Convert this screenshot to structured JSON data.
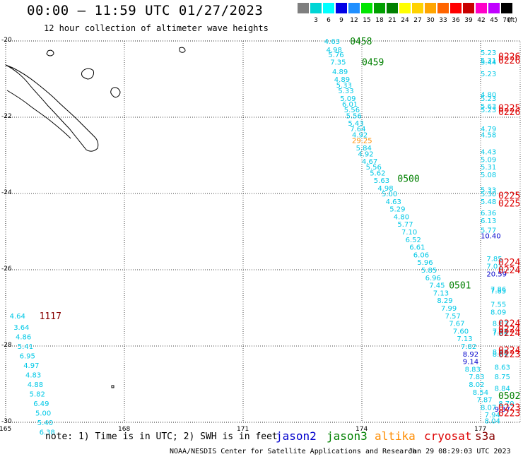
{
  "title": "00:00 – 11:59 UTC 01/27/2023",
  "subtitle": "12 hour collection of altimeter wave heights",
  "legend": {
    "unit": "(ft)",
    "steps": [
      {
        "label": "",
        "color": "#7f7f7f"
      },
      {
        "label": "3",
        "color": "#00d5d5"
      },
      {
        "label": "6",
        "color": "#00ffff"
      },
      {
        "label": "9",
        "color": "#0000e6"
      },
      {
        "label": "12",
        "color": "#1f8fff"
      },
      {
        "label": "15",
        "color": "#00e600"
      },
      {
        "label": "18",
        "color": "#00a000"
      },
      {
        "label": "21",
        "color": "#008000"
      },
      {
        "label": "24",
        "color": "#ffff00"
      },
      {
        "label": "27",
        "color": "#ffd200"
      },
      {
        "label": "30",
        "color": "#ffa500"
      },
      {
        "label": "33",
        "color": "#ff6400"
      },
      {
        "label": "36",
        "color": "#ff0000"
      },
      {
        "label": "39",
        "color": "#c80000"
      },
      {
        "label": "42",
        "color": "#ff00c8"
      },
      {
        "label": "45",
        "color": "#c000ff"
      },
      {
        "label": "70",
        "color": "#000000"
      }
    ]
  },
  "map": {
    "lon_range": [
      165,
      178
    ],
    "lat_range": [
      -30,
      -20
    ],
    "lon_ticks": [
      "165",
      "168",
      "171",
      "174",
      "177"
    ],
    "lat_ticks": [
      "-20",
      "-22",
      "-24",
      "-26",
      "-28",
      "-30"
    ]
  },
  "footer": {
    "note": "note: 1) Time is in UTC; 2) SWH is in feet",
    "satellites": [
      {
        "name": "jason2",
        "color": "#0000cc"
      },
      {
        "name": "jason3",
        "color": "#008000"
      },
      {
        "name": "altika",
        "color": "#ff8c00"
      },
      {
        "name": "cryosat",
        "color": "#dd0000"
      },
      {
        "name": "s3a",
        "color": "#880000"
      }
    ],
    "credit": "NOAA/NESDIS Center for Satellite Applications and Research",
    "stamp": "Jan 29 08:29:03 UTC 2023"
  },
  "colors": {
    "swh_low": "#00c8e6",
    "swh_mid": "#0000cc",
    "time_jason3": "#008000",
    "time_cryosat": "#dd0000",
    "time_s3a": "#880000",
    "swh_high": "#ff8c00"
  },
  "tracks": {
    "jason3_a": [
      {
        "lon": 173.05,
        "lat": -20.0,
        "swh": "4.63"
      },
      {
        "lon": 173.1,
        "lat": -20.22,
        "swh": "4.98"
      },
      {
        "lon": 173.15,
        "lat": -20.35,
        "swh": "5.76"
      },
      {
        "lon": 173.2,
        "lat": -20.55,
        "swh": "7.35"
      },
      {
        "lon": 173.25,
        "lat": -20.8,
        "swh": "4.89"
      },
      {
        "lon": 173.3,
        "lat": -21.0,
        "swh": "4.89"
      },
      {
        "lon": 173.35,
        "lat": -21.15,
        "swh": "5.33"
      },
      {
        "lon": 173.4,
        "lat": -21.3,
        "swh": "5.33"
      },
      {
        "lon": 173.45,
        "lat": -21.5,
        "swh": "5.09"
      },
      {
        "lon": 173.5,
        "lat": -21.65,
        "swh": "6.01"
      },
      {
        "lon": 173.55,
        "lat": -21.8,
        "swh": "5.56"
      },
      {
        "lon": 173.6,
        "lat": -21.95,
        "swh": "5.56"
      },
      {
        "lon": 173.65,
        "lat": -22.15,
        "swh": "5.43"
      },
      {
        "lon": 173.7,
        "lat": -22.3,
        "swh": "7.64"
      },
      {
        "lon": 173.75,
        "lat": -22.45,
        "swh": "4.92"
      },
      {
        "lon": 173.75,
        "lat": -22.6,
        "swh": "29.25"
      },
      {
        "lon": 173.85,
        "lat": -22.8,
        "swh": "5.84"
      },
      {
        "lon": 173.9,
        "lat": -22.95,
        "swh": "4.92"
      },
      {
        "lon": 174.0,
        "lat": -23.15,
        "swh": "4.67"
      },
      {
        "lon": 174.1,
        "lat": -23.3,
        "swh": "5.56"
      },
      {
        "lon": 174.2,
        "lat": -23.45,
        "swh": "5.62"
      },
      {
        "lon": 174.3,
        "lat": -23.65,
        "swh": "5.63"
      },
      {
        "lon": 174.4,
        "lat": -23.85,
        "swh": "4.98"
      },
      {
        "lon": 174.5,
        "lat": -24.0,
        "swh": "5.00"
      },
      {
        "lon": 174.6,
        "lat": -24.2,
        "swh": "4.63"
      },
      {
        "lon": 174.7,
        "lat": -24.4,
        "swh": "5.29"
      },
      {
        "lon": 174.8,
        "lat": -24.6,
        "swh": "4.80"
      },
      {
        "lon": 174.9,
        "lat": -24.8,
        "swh": "5.77"
      },
      {
        "lon": 175.0,
        "lat": -25.0,
        "swh": "7.10"
      },
      {
        "lon": 175.1,
        "lat": -25.2,
        "swh": "6.52"
      },
      {
        "lon": 175.2,
        "lat": -25.4,
        "swh": "6.61"
      },
      {
        "lon": 175.3,
        "lat": -25.6,
        "swh": "6.06"
      },
      {
        "lon": 175.4,
        "lat": -25.8,
        "swh": "5.96"
      },
      {
        "lon": 175.5,
        "lat": -26.0,
        "swh": "5.85"
      },
      {
        "lon": 175.6,
        "lat": -26.2,
        "swh": "6.96"
      },
      {
        "lon": 175.7,
        "lat": -26.4,
        "swh": "7.45"
      },
      {
        "lon": 175.8,
        "lat": -26.6,
        "swh": "7.13"
      },
      {
        "lon": 175.9,
        "lat": -26.8,
        "swh": "8.29"
      },
      {
        "lon": 176.0,
        "lat": -27.0,
        "swh": "7.99"
      },
      {
        "lon": 176.1,
        "lat": -27.2,
        "swh": "7.57"
      },
      {
        "lon": 176.2,
        "lat": -27.4,
        "swh": "7.67"
      },
      {
        "lon": 176.3,
        "lat": -27.6,
        "swh": "7.60"
      },
      {
        "lon": 176.4,
        "lat": -27.8,
        "swh": "7.13"
      },
      {
        "lon": 176.5,
        "lat": -28.0,
        "swh": "7.82"
      },
      {
        "lon": 176.55,
        "lat": -28.2,
        "swh": "8.92"
      },
      {
        "lon": 176.55,
        "lat": -28.4,
        "swh": "9.14"
      },
      {
        "lon": 176.6,
        "lat": -28.6,
        "swh": "8.83"
      },
      {
        "lon": 176.7,
        "lat": -28.8,
        "swh": "7.83"
      },
      {
        "lon": 176.7,
        "lat": -29.0,
        "swh": "8.02"
      },
      {
        "lon": 176.8,
        "lat": -29.2,
        "swh": "8.54"
      },
      {
        "lon": 176.9,
        "lat": -29.4,
        "swh": "7.87"
      },
      {
        "lon": 177.0,
        "lat": -29.6,
        "swh": "8.07"
      },
      {
        "lon": 177.1,
        "lat": -29.8,
        "swh": "7.94"
      },
      {
        "lon": 177.1,
        "lat": -29.95,
        "swh": "8.04"
      }
    ],
    "jason3_b": [
      {
        "lon": 177.0,
        "lat": -20.3,
        "swh": "5.23"
      },
      {
        "lon": 177.0,
        "lat": -20.5,
        "swh": "5.31"
      },
      {
        "lon": 177.0,
        "lat": -20.55,
        "swh": "5.44"
      },
      {
        "lon": 177.0,
        "lat": -20.85,
        "swh": "5.23"
      },
      {
        "lon": 177.0,
        "lat": -21.4,
        "swh": "4.80"
      },
      {
        "lon": 177.0,
        "lat": -21.5,
        "swh": "5.23"
      },
      {
        "lon": 177.0,
        "lat": -21.7,
        "swh": "5.63"
      },
      {
        "lon": 177.0,
        "lat": -21.8,
        "swh": "5.23"
      },
      {
        "lon": 177.0,
        "lat": -22.3,
        "swh": "4.79"
      },
      {
        "lon": 177.0,
        "lat": -22.45,
        "swh": "4.58"
      },
      {
        "lon": 177.0,
        "lat": -22.9,
        "swh": "4.43"
      },
      {
        "lon": 177.0,
        "lat": -23.1,
        "swh": "5.09"
      },
      {
        "lon": 177.0,
        "lat": -23.3,
        "swh": "5.31"
      },
      {
        "lon": 177.0,
        "lat": -23.5,
        "swh": "5.08"
      },
      {
        "lon": 177.0,
        "lat": -23.9,
        "swh": "5.33"
      },
      {
        "lon": 177.0,
        "lat": -24.0,
        "swh": "5.30"
      },
      {
        "lon": 177.0,
        "lat": -24.2,
        "swh": "5.48"
      },
      {
        "lon": 177.0,
        "lat": -24.5,
        "swh": "6.36"
      },
      {
        "lon": 177.0,
        "lat": -24.7,
        "swh": "6.13"
      },
      {
        "lon": 177.0,
        "lat": -24.95,
        "swh": "5.77"
      },
      {
        "lon": 177.0,
        "lat": -25.1,
        "swh": "10.40"
      },
      {
        "lon": 177.15,
        "lat": -25.7,
        "swh": "7.85"
      },
      {
        "lon": 177.15,
        "lat": -25.9,
        "swh": "7.01"
      },
      {
        "lon": 177.15,
        "lat": -26.1,
        "swh": "20.59"
      },
      {
        "lon": 177.25,
        "lat": -26.5,
        "swh": "7.86"
      },
      {
        "lon": 177.25,
        "lat": -26.55,
        "swh": "7.85"
      },
      {
        "lon": 177.25,
        "lat": -26.9,
        "swh": "7.55"
      },
      {
        "lon": 177.25,
        "lat": -27.1,
        "swh": "8.09"
      },
      {
        "lon": 177.3,
        "lat": -27.4,
        "swh": "8.03"
      },
      {
        "lon": 177.3,
        "lat": -27.6,
        "swh": "7.92"
      },
      {
        "lon": 177.3,
        "lat": -27.65,
        "swh": "7.85"
      },
      {
        "lon": 177.3,
        "lat": -28.15,
        "swh": "8.85"
      },
      {
        "lon": 177.3,
        "lat": -28.2,
        "swh": "8.69"
      },
      {
        "lon": 177.35,
        "lat": -28.55,
        "swh": "8.63"
      },
      {
        "lon": 177.35,
        "lat": -28.8,
        "swh": "8.75"
      },
      {
        "lon": 177.35,
        "lat": -29.1,
        "swh": "8.84"
      },
      {
        "lon": 177.45,
        "lat": -29.5,
        "swh": "8.70"
      },
      {
        "lon": 177.35,
        "lat": -29.65,
        "swh": "9.37"
      }
    ],
    "jason3_c": [
      {
        "lon": 165.1,
        "lat": -27.2,
        "swh": "4.64"
      },
      {
        "lon": 165.2,
        "lat": -27.5,
        "swh": "3.64"
      },
      {
        "lon": 165.25,
        "lat": -27.75,
        "swh": "4.86"
      },
      {
        "lon": 165.3,
        "lat": -28.0,
        "swh": "5.41"
      },
      {
        "lon": 165.35,
        "lat": -28.25,
        "swh": "6.95"
      },
      {
        "lon": 165.45,
        "lat": -28.5,
        "swh": "4.97"
      },
      {
        "lon": 165.5,
        "lat": -28.75,
        "swh": "4.83"
      },
      {
        "lon": 165.55,
        "lat": -29.0,
        "swh": "4.88"
      },
      {
        "lon": 165.6,
        "lat": -29.25,
        "swh": "5.82"
      },
      {
        "lon": 165.7,
        "lat": -29.5,
        "swh": "6.49"
      },
      {
        "lon": 165.75,
        "lat": -29.75,
        "swh": "5.00"
      },
      {
        "lon": 165.8,
        "lat": -30.0,
        "swh": "5.40"
      },
      {
        "lon": 165.85,
        "lat": -30.25,
        "swh": "6.38"
      }
    ]
  },
  "time_labels": [
    {
      "lon": 173.7,
      "lat": -20.0,
      "text": "0458",
      "sat": "jason3"
    },
    {
      "lon": 174.0,
      "lat": -20.55,
      "text": "0459",
      "sat": "jason3"
    },
    {
      "lon": 174.9,
      "lat": -23.6,
      "text": "0500",
      "sat": "jason3"
    },
    {
      "lon": 176.2,
      "lat": -26.4,
      "text": "0501",
      "sat": "jason3"
    },
    {
      "lon": 177.7,
      "lat": -29.3,
      "text": "0502",
      "sat": "jason3"
    },
    {
      "lon": 177.55,
      "lat": -20.4,
      "text": "0226",
      "sat": "cryosat"
    },
    {
      "lon": 177.55,
      "lat": -20.5,
      "text": "0226",
      "sat": "cryosat"
    },
    {
      "lon": 177.75,
      "lat": -21.75,
      "text": "0225",
      "sat": "cryosat"
    },
    {
      "lon": 177.75,
      "lat": -21.85,
      "text": "0226",
      "sat": "cryosat"
    },
    {
      "lon": 178.0,
      "lat": -24.05,
      "text": "0225",
      "sat": "cryosat"
    },
    {
      "lon": 178.0,
      "lat": -24.25,
      "text": "0225",
      "sat": "cryosat"
    },
    {
      "lon": 177.85,
      "lat": -25.8,
      "text": "0224",
      "sat": "cryosat"
    },
    {
      "lon": 177.85,
      "lat": -26.0,
      "text": "0224",
      "sat": "cryosat"
    },
    {
      "lon": 178.05,
      "lat": -27.4,
      "text": "0224",
      "sat": "cryosat"
    },
    {
      "lon": 178.05,
      "lat": -27.55,
      "text": "0224",
      "sat": "cryosat"
    },
    {
      "lon": 178.05,
      "lat": -27.65,
      "text": "0224",
      "sat": "cryosat"
    },
    {
      "lon": 178.1,
      "lat": -28.1,
      "text": "0224",
      "sat": "cryosat"
    },
    {
      "lon": 178.1,
      "lat": -28.2,
      "text": "0223",
      "sat": "cryosat"
    },
    {
      "lon": 178.05,
      "lat": -29.6,
      "text": "0223",
      "sat": "cryosat"
    },
    {
      "lon": 178.05,
      "lat": -29.75,
      "text": "0223",
      "sat": "cryosat"
    },
    {
      "lon": 165.85,
      "lat": -27.2,
      "text": "1117",
      "sat": "s3a"
    }
  ]
}
